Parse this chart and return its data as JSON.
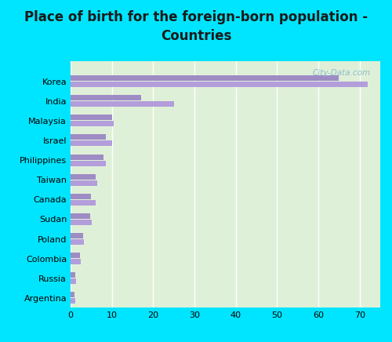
{
  "title": "Place of birth for the foreign-born population -\nCountries",
  "categories": [
    "Korea",
    "India",
    "Malaysia",
    "Israel",
    "Philippines",
    "Taiwan",
    "Canada",
    "Sudan",
    "Poland",
    "Colombia",
    "Russia",
    "Argentina"
  ],
  "values1": [
    72.0,
    25.0,
    10.5,
    10.0,
    8.5,
    6.5,
    6.0,
    5.2,
    3.2,
    2.5,
    1.3,
    1.1
  ],
  "values2": [
    65.0,
    17.0,
    10.0,
    8.5,
    8.0,
    6.0,
    5.0,
    4.8,
    3.0,
    2.2,
    1.1,
    1.0
  ],
  "bar_color1": "#b39ddb",
  "bar_color2": "#9e8cc5",
  "background_outer": "#00e5ff",
  "background_plot": "#dff0d8",
  "title_fontsize": 12,
  "xlim": [
    0,
    75
  ],
  "xticks": [
    0,
    10,
    20,
    30,
    40,
    50,
    60,
    70
  ],
  "bar_height": 0.28,
  "bar_gap": 0.04,
  "watermark": "City-Data.com"
}
